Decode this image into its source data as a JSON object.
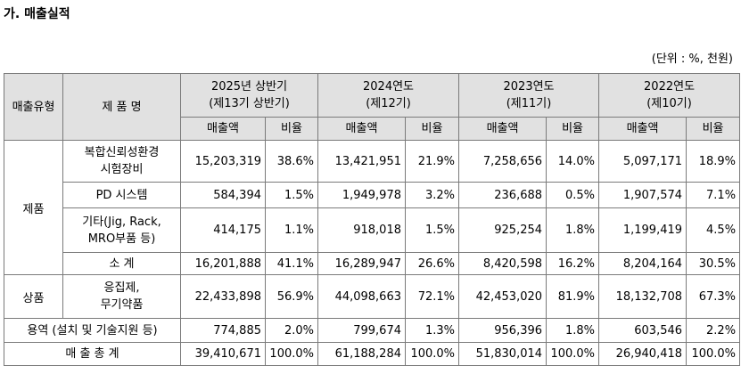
{
  "title": "가. 매출실적",
  "unit_note": "(단위 : %, 천원)",
  "header": {
    "type_col": "매출유형",
    "product_col": "제 품 명",
    "periods": [
      {
        "year": "2025년 상반기",
        "term": "(제13기 상반기)"
      },
      {
        "year": "2024연도",
        "term": "(제12기)"
      },
      {
        "year": "2023연도",
        "term": "(제11기)"
      },
      {
        "year": "2022연도",
        "term": "(제10기)"
      }
    ],
    "amount_label": "매출액",
    "ratio_label": "비율"
  },
  "groups": {
    "product": "제품",
    "goods": "상품"
  },
  "rows": [
    {
      "name": "복합신뢰성환경\n시험장비",
      "values": [
        "15,203,319",
        "38.6%",
        "13,421,951",
        "21.9%",
        "7,258,656",
        "14.0%",
        "5,097,171",
        "18.9%"
      ]
    },
    {
      "name": "PD 시스템",
      "values": [
        "584,394",
        "1.5%",
        "1,949,978",
        "3.2%",
        "236,688",
        "0.5%",
        "1,907,574",
        "7.1%"
      ]
    },
    {
      "name": "기타(Jig, Rack,\nMRO부품 등)",
      "values": [
        "414,175",
        "1.1%",
        "918,018",
        "1.5%",
        "925,254",
        "1.8%",
        "1,199,419",
        "4.5%"
      ]
    },
    {
      "name": "소  계",
      "values": [
        "16,201,888",
        "41.1%",
        "16,289,947",
        "26.6%",
        "8,420,598",
        "16.2%",
        "8,204,164",
        "30.5%"
      ]
    },
    {
      "name": "응집제,\n무기약품",
      "values": [
        "22,433,898",
        "56.9%",
        "44,098,663",
        "72.1%",
        "42,453,020",
        "81.9%",
        "18,132,708",
        "67.3%"
      ]
    },
    {
      "name": "용역 (설치 및 기술지원 등)",
      "values": [
        "774,885",
        "2.0%",
        "799,674",
        "1.3%",
        "956,396",
        "1.8%",
        "603,546",
        "2.2%"
      ]
    },
    {
      "name": "매  출  총  계",
      "values": [
        "39,410,671",
        "100.0%",
        "61,188,284",
        "100.0%",
        "51,830,014",
        "100.0%",
        "26,940,418",
        "100.0%"
      ]
    }
  ]
}
